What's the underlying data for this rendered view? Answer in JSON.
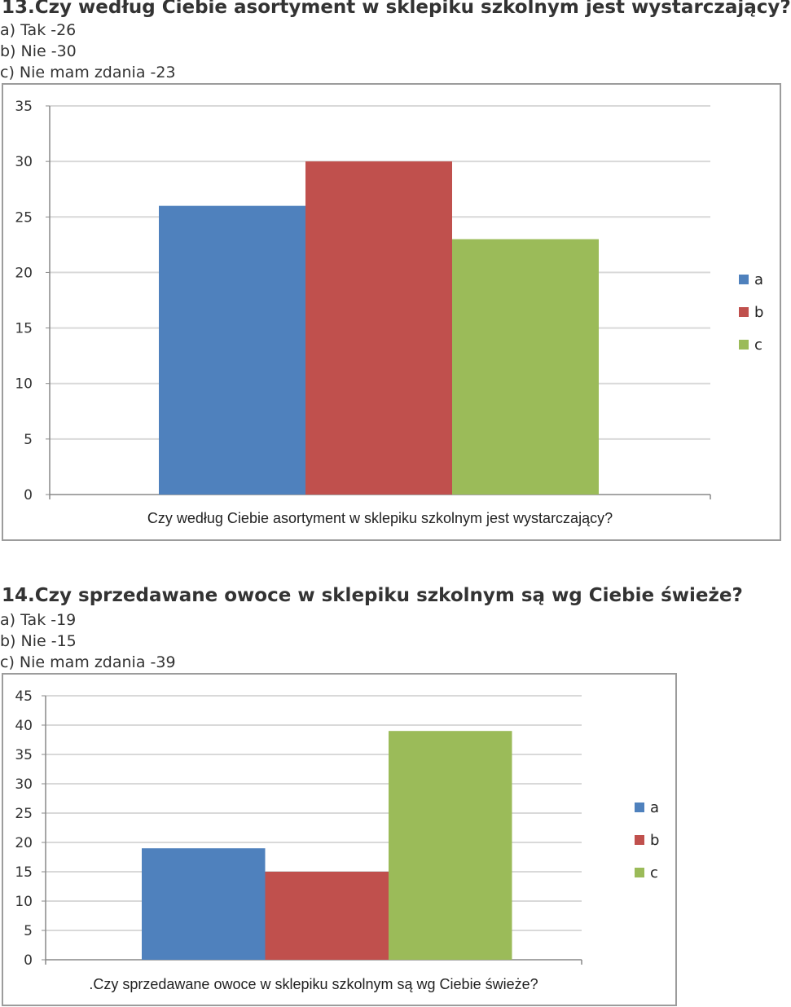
{
  "questions": [
    {
      "heading": "13.Czy według Ciebie asortyment w sklepiku szkolnym jest wystarczający?",
      "answers": [
        "a) Tak -26",
        "b) Nie -30",
        "c) Nie mam zdania -23"
      ]
    },
    {
      "heading": "14.Czy sprzedawane owoce w sklepiku szkolnym są wg Ciebie świeże?",
      "answers": [
        "a) Tak -19",
        "b) Nie -15",
        "c) Nie mam zdania -39"
      ]
    }
  ],
  "colors": {
    "a": "#4F81BD",
    "b": "#C0504D",
    "c": "#9BBB59",
    "grid": "#d9d9d9",
    "axis": "#888888"
  },
  "chart_data": [
    {
      "type": "bar",
      "categories": [
        "Czy według Ciebie asortyment w sklepiku szkolnym jest wystarczający?"
      ],
      "series": [
        {
          "name": "a",
          "values": [
            26
          ]
        },
        {
          "name": "b",
          "values": [
            30
          ]
        },
        {
          "name": "c",
          "values": [
            23
          ]
        }
      ],
      "ylim": [
        0,
        35
      ],
      "yticks": [
        0,
        5,
        10,
        15,
        20,
        25,
        30,
        35
      ],
      "grid": true,
      "legend": "right"
    },
    {
      "type": "bar",
      "categories": [
        ".Czy sprzedawane owoce w sklepiku szkolnym są wg Ciebie świeże?"
      ],
      "series": [
        {
          "name": "a",
          "values": [
            19
          ]
        },
        {
          "name": "b",
          "values": [
            15
          ]
        },
        {
          "name": "c",
          "values": [
            39
          ]
        }
      ],
      "ylim": [
        0,
        45
      ],
      "yticks": [
        0,
        5,
        10,
        15,
        20,
        25,
        30,
        35,
        40,
        45
      ],
      "grid": true,
      "legend": "right"
    }
  ]
}
